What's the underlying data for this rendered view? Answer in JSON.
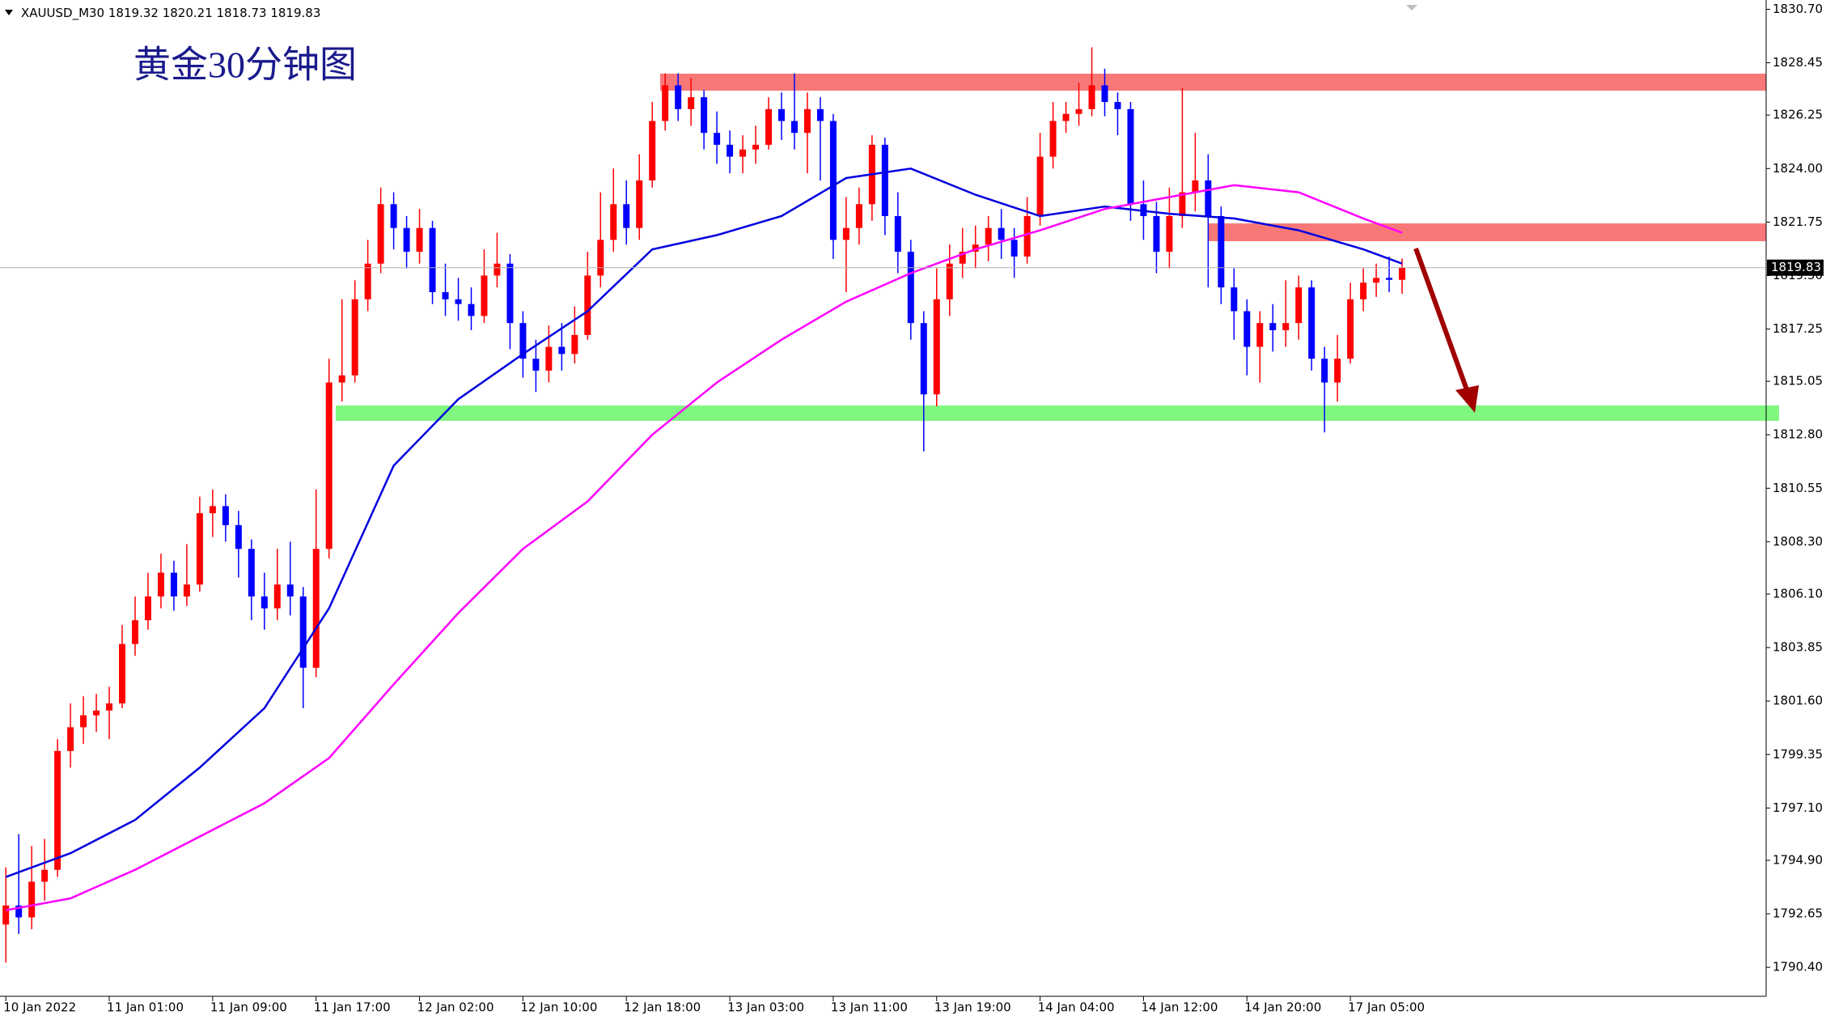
{
  "chart_data": {
    "type": "candlestick",
    "symbol": "XAUUSD_M30",
    "title": "黄金30分钟图",
    "up_color": "#ff0000",
    "down_color": "#0000ff",
    "grid": false,
    "categories": [
      "10 Jan 2022",
      null,
      null,
      null,
      null,
      null,
      null,
      null,
      "11 Jan 01:00",
      null,
      null,
      null,
      null,
      null,
      null,
      null,
      "11 Jan 09:00",
      null,
      null,
      null,
      null,
      null,
      null,
      null,
      "11 Jan 17:00",
      null,
      null,
      null,
      null,
      null,
      null,
      null,
      "12 Jan 02:00",
      null,
      null,
      null,
      null,
      null,
      null,
      null,
      "12 Jan 10:00",
      null,
      null,
      null,
      null,
      null,
      null,
      null,
      "12 Jan 18:00",
      null,
      null,
      null,
      null,
      null,
      null,
      null,
      "13 Jan 03:00",
      null,
      null,
      null,
      null,
      null,
      null,
      null,
      "13 Jan 11:00",
      null,
      null,
      null,
      null,
      null,
      null,
      null,
      "13 Jan 19:00",
      null,
      null,
      null,
      null,
      null,
      null,
      null,
      "14 Jan 04:00",
      null,
      null,
      null,
      null,
      null,
      null,
      null,
      "14 Jan 12:00",
      null,
      null,
      null,
      null,
      null,
      null,
      null,
      "14 Jan 20:00",
      null,
      null,
      null,
      null,
      null,
      null,
      null,
      "17 Jan 05:00",
      null,
      null,
      null,
      null
    ],
    "open": [
      1792.2,
      1793,
      1792.5,
      1794,
      1794.5,
      1799.5,
      1800.5,
      1801,
      1801.2,
      1801.5,
      1804,
      1805,
      1806,
      1807,
      1806,
      1806.5,
      1809.5,
      1809.8,
      1809,
      1808,
      1806,
      1805.5,
      1806.5,
      1806,
      1803,
      1808,
      1815,
      1815.3,
      1818.5,
      1820,
      1822.5,
      1821.5,
      1820.5,
      1821.5,
      1818.8,
      1818.5,
      1818.3,
      1817.8,
      1819.5,
      1820,
      1817.5,
      1816,
      1815.5,
      1816.5,
      1816.2,
      1817,
      1819.5,
      1821,
      1822.5,
      1821.5,
      1823.5,
      1826,
      1827.5,
      1826.5,
      1827,
      1825.5,
      1825,
      1824.5,
      1824.8,
      1825,
      1826.5,
      1826,
      1825.5,
      1826.5,
      1826,
      1821,
      1821.5,
      1822.5,
      1825,
      1822,
      1820.5,
      1817.5,
      1814.5,
      1818.5,
      1820,
      1820.5,
      1820.8,
      1821.5,
      1821,
      1820.3,
      1822,
      1824.5,
      1826,
      1826.3,
      1826.5,
      1827.5,
      1826.8,
      1826.5,
      1822.5,
      1822,
      1820.5,
      1822,
      1823,
      1823.5,
      1822,
      1819,
      1818,
      1816.5,
      1817.5,
      1817.2,
      1817.5,
      1819,
      1816,
      1815,
      1816,
      1818.5,
      1819.2,
      1819.4,
      1819.32
    ],
    "high": [
      1794.6,
      1796,
      1795.5,
      1795.8,
      1800,
      1801.5,
      1801.8,
      1801.9,
      1802.2,
      1804.8,
      1806,
      1807,
      1807.8,
      1807.5,
      1808.2,
      1810.2,
      1810.5,
      1810.3,
      1809.6,
      1808.4,
      1807,
      1808,
      1808.3,
      1806.4,
      1810.5,
      1816,
      1818.5,
      1819.3,
      1821,
      1823.2,
      1823,
      1822,
      1822.3,
      1821.8,
      1820,
      1819.4,
      1819,
      1820.6,
      1821.3,
      1820.4,
      1818,
      1816.8,
      1817.4,
      1817.5,
      1818.2,
      1820.5,
      1823,
      1824,
      1823.5,
      1824.6,
      1826.8,
      1828,
      1828,
      1827.8,
      1827.3,
      1826.4,
      1825.6,
      1825.4,
      1825.8,
      1827,
      1827.2,
      1828,
      1827.2,
      1827,
      1826.3,
      1822.8,
      1823.2,
      1825.4,
      1825.3,
      1823,
      1821,
      1818,
      1819.8,
      1820.8,
      1821.5,
      1821.6,
      1822,
      1822.3,
      1821.5,
      1822.8,
      1825.5,
      1826.8,
      1826.8,
      1827.6,
      1829.1,
      1828.2,
      1827.2,
      1826.8,
      1823.5,
      1822.6,
      1823.2,
      1827.4,
      1825.5,
      1824.6,
      1822.4,
      1819.8,
      1818.5,
      1818,
      1818.3,
      1819.3,
      1819.5,
      1819.3,
      1816.5,
      1817,
      1819.2,
      1819.8,
      1820,
      1820.3,
      1820.21
    ],
    "low": [
      1790.6,
      1791.8,
      1792,
      1793.2,
      1794.2,
      1798.8,
      1799.8,
      1800.3,
      1800,
      1801.3,
      1803.5,
      1804.6,
      1805.5,
      1805.4,
      1805.6,
      1806.2,
      1808.5,
      1808.3,
      1806.8,
      1805,
      1804.6,
      1805,
      1805.2,
      1801.3,
      1802.6,
      1807.6,
      1814.2,
      1815,
      1818,
      1819.6,
      1820.6,
      1819.8,
      1820,
      1818.3,
      1817.8,
      1817.6,
      1817.2,
      1817.5,
      1819,
      1816.4,
      1815.2,
      1814.6,
      1815,
      1815.5,
      1815.8,
      1816.8,
      1819,
      1820.5,
      1820.8,
      1821,
      1823.2,
      1825.6,
      1826,
      1825.8,
      1824.8,
      1824.2,
      1823.8,
      1823.8,
      1824.2,
      1824.8,
      1825.2,
      1824.8,
      1823.8,
      1823.5,
      1820.2,
      1818.8,
      1820.8,
      1821.8,
      1821.2,
      1819.6,
      1816.8,
      1812.1,
      1814,
      1817.8,
      1819.4,
      1819.8,
      1820.1,
      1820.2,
      1819.4,
      1820,
      1821.6,
      1824,
      1825.5,
      1825.8,
      1826.2,
      1826.2,
      1825.4,
      1821.8,
      1821,
      1819.6,
      1819.8,
      1821.5,
      1822.2,
      1819,
      1818.3,
      1816.8,
      1815.3,
      1815,
      1816.3,
      1816.5,
      1816.8,
      1815.5,
      1812.9,
      1814.2,
      1815.8,
      1818,
      1818.6,
      1818.8,
      1818.73
    ],
    "close": [
      1793,
      1792.5,
      1794,
      1794.5,
      1799.5,
      1800.5,
      1801,
      1801.2,
      1801.5,
      1804,
      1805,
      1806,
      1807,
      1806,
      1806.5,
      1809.5,
      1809.8,
      1809,
      1808,
      1806,
      1805.5,
      1806.5,
      1806,
      1803,
      1808,
      1815,
      1815.3,
      1818.5,
      1820,
      1822.5,
      1821.5,
      1820.5,
      1821.5,
      1818.8,
      1818.5,
      1818.3,
      1817.8,
      1819.5,
      1820,
      1817.5,
      1816,
      1815.5,
      1816.5,
      1816.2,
      1817,
      1819.5,
      1821,
      1822.5,
      1821.5,
      1823.5,
      1826,
      1827.5,
      1826.5,
      1827,
      1825.5,
      1825,
      1824.5,
      1824.8,
      1825,
      1826.5,
      1826,
      1825.5,
      1826.5,
      1826,
      1821,
      1821.5,
      1822.5,
      1825,
      1822,
      1820.5,
      1817.5,
      1814.5,
      1818.5,
      1820,
      1820.5,
      1820.8,
      1821.5,
      1821,
      1820.3,
      1822,
      1824.5,
      1826,
      1826.3,
      1826.5,
      1827.5,
      1826.8,
      1826.5,
      1822.5,
      1822,
      1820.5,
      1822,
      1823,
      1823.5,
      1822,
      1819,
      1818,
      1816.5,
      1817.5,
      1817.2,
      1817.5,
      1819,
      1816,
      1815,
      1816,
      1818.5,
      1819.2,
      1819.4,
      1819.32,
      1819.83
    ],
    "overlays": [
      {
        "color": "#0000e0",
        "x": [
          0,
          5,
          10,
          15,
          20,
          25,
          30,
          35,
          40,
          45,
          50,
          55,
          60,
          65,
          70,
          75,
          80,
          85,
          90,
          95,
          100,
          105,
          108
        ],
        "values": [
          1794.2,
          1795.2,
          1796.6,
          1798.8,
          1801.3,
          1805.5,
          1811.5,
          1814.3,
          1816.2,
          1818,
          1820.6,
          1821.2,
          1822,
          1823.6,
          1824,
          1822.9,
          1822,
          1822.4,
          1822.1,
          1821.9,
          1821.4,
          1820.6,
          1820
        ]
      },
      {
        "color": "#ff00ff",
        "x": [
          0,
          5,
          10,
          15,
          20,
          25,
          30,
          35,
          40,
          45,
          50,
          55,
          60,
          65,
          70,
          75,
          80,
          85,
          90,
          95,
          100,
          105,
          108
        ],
        "values": [
          1792.8,
          1793.3,
          1794.5,
          1795.9,
          1797.3,
          1799.2,
          1802.3,
          1805.3,
          1808,
          1810,
          1812.8,
          1815,
          1816.8,
          1818.4,
          1819.6,
          1820.6,
          1821.4,
          1822.3,
          1822.8,
          1823.3,
          1823,
          1821.9,
          1821.3
        ]
      }
    ],
    "ylim": [
      1789.18,
      1831.09
    ],
    "yticks": [
      {
        "value": 1830.7,
        "label": "1830.70"
      },
      {
        "value": 1828.45,
        "label": "1828.45"
      },
      {
        "value": 1826.25,
        "label": "1826.25"
      },
      {
        "value": 1824,
        "label": "1824.00"
      },
      {
        "value": 1821.75,
        "label": "1821.75"
      },
      {
        "value": 1819.5,
        "label": "1819.50"
      },
      {
        "value": 1817.25,
        "label": "1817.25"
      },
      {
        "value": 1815.05,
        "label": "1815.05"
      },
      {
        "value": 1812.8,
        "label": "1812.80"
      },
      {
        "value": 1810.55,
        "label": "1810.55"
      },
      {
        "value": 1808.3,
        "label": "1808.30"
      },
      {
        "value": 1806.1,
        "label": "1806.10"
      },
      {
        "value": 1803.85,
        "label": "1803.85"
      },
      {
        "value": 1801.6,
        "label": "1801.60"
      },
      {
        "value": 1799.35,
        "label": "1799.35"
      },
      {
        "value": 1797.1,
        "label": "1797.10"
      },
      {
        "value": 1794.9,
        "label": "1794.90"
      },
      {
        "value": 1792.65,
        "label": "1792.65"
      },
      {
        "value": 1790.4,
        "label": "1790.40"
      }
    ]
  }
}
